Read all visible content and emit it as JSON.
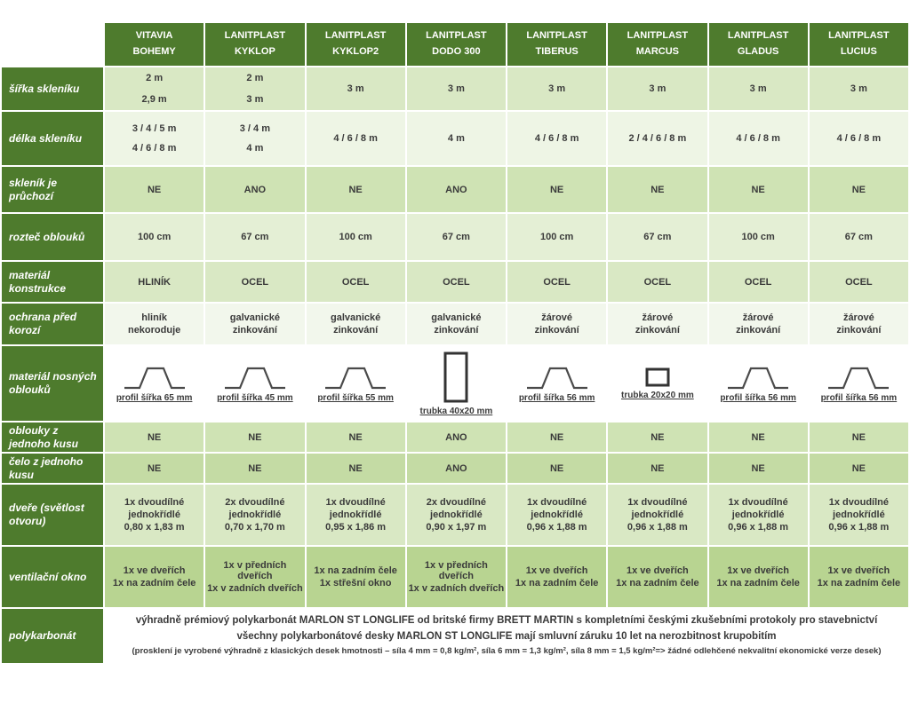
{
  "colors": {
    "header_green": "#4e7b2d",
    "cell_text": "#3a3a3a",
    "grid_white": "#ffffff",
    "profile_stroke": "#4a4a4a"
  },
  "table": {
    "columns": [
      {
        "brand": "VITAVIA",
        "model": "BOHEMY"
      },
      {
        "brand": "LANITPLAST",
        "model": "KYKLOP"
      },
      {
        "brand": "LANITPLAST",
        "model": "KYKLOP2"
      },
      {
        "brand": "LANITPLAST",
        "model": "DODO 300"
      },
      {
        "brand": "LANITPLAST",
        "model": "TIBERUS"
      },
      {
        "brand": "LANITPLAST",
        "model": "MARCUS"
      },
      {
        "brand": "LANITPLAST",
        "model": "GLADUS"
      },
      {
        "brand": "LANITPLAST",
        "model": "LUCIUS"
      }
    ],
    "rows": [
      {
        "label": "šířka skleníku",
        "bg": "#d9e8c4",
        "cells": [
          [
            "2 m",
            "2,9 m"
          ],
          [
            "2 m",
            "3 m"
          ],
          [
            "3 m"
          ],
          [
            "3 m"
          ],
          [
            "3 m"
          ],
          [
            "3 m"
          ],
          [
            "3 m"
          ],
          [
            "3 m"
          ]
        ]
      },
      {
        "label": "délka skleníku",
        "bg": "#eef5e5",
        "cells": [
          [
            "3 / 4 / 5 m",
            "4 / 6 / 8 m"
          ],
          [
            "3 / 4 m",
            "4 m"
          ],
          [
            "4 / 6 / 8 m"
          ],
          [
            "4 m"
          ],
          [
            "4 / 6 / 8 m"
          ],
          [
            "2 / 4 / 6 / 8 m"
          ],
          [
            "4 / 6 / 8 m"
          ],
          [
            "4 / 6 / 8 m"
          ]
        ]
      },
      {
        "label": "skleník je průchozí",
        "bg": "#cfe3b4",
        "cells": [
          [
            "NE"
          ],
          [
            "ANO"
          ],
          [
            "NE"
          ],
          [
            "ANO"
          ],
          [
            "NE"
          ],
          [
            "NE"
          ],
          [
            "NE"
          ],
          [
            "NE"
          ]
        ]
      },
      {
        "label": "rozteč oblouků",
        "bg": "#e4efd5",
        "cells": [
          [
            "100 cm"
          ],
          [
            "67 cm"
          ],
          [
            "100 cm"
          ],
          [
            "67 cm"
          ],
          [
            "100 cm"
          ],
          [
            "67 cm"
          ],
          [
            "100 cm"
          ],
          [
            "67 cm"
          ]
        ]
      },
      {
        "label": "materiál konstrukce",
        "bg": "#d9e8c4",
        "cells": [
          [
            "HLINÍK"
          ],
          [
            "OCEL"
          ],
          [
            "OCEL"
          ],
          [
            "OCEL"
          ],
          [
            "OCEL"
          ],
          [
            "OCEL"
          ],
          [
            "OCEL"
          ],
          [
            "OCEL"
          ]
        ]
      },
      {
        "label": "ochrana před korozí",
        "bg": "#f2f7ec",
        "cells": [
          [
            "hliník",
            "nekoroduje"
          ],
          [
            "galvanické",
            "zinkování"
          ],
          [
            "galvanické",
            "zinkování"
          ],
          [
            "galvanické",
            "zinkování"
          ],
          [
            "žárové",
            "zinkování"
          ],
          [
            "žárové",
            "zinkování"
          ],
          [
            "žárové",
            "zinkování"
          ],
          [
            "žárové",
            "zinkování"
          ]
        ]
      },
      {
        "label": "materiál nosných oblouků",
        "bg": "#ffffff",
        "type": "profile",
        "cells": [
          {
            "shape": "hat-profile",
            "caption": "profil šířka 65 mm"
          },
          {
            "shape": "hat-profile",
            "caption": "profil šířka 45 mm"
          },
          {
            "shape": "hat-profile",
            "caption": "profil šířka 55 mm"
          },
          {
            "shape": "vertical-tube",
            "caption": "trubka 40x20 mm"
          },
          {
            "shape": "hat-profile",
            "caption": "profil šířka 56 mm"
          },
          {
            "shape": "square-tube",
            "caption": "trubka 20x20 mm"
          },
          {
            "shape": "hat-profile",
            "caption": "profil šířka 56 mm"
          },
          {
            "shape": "hat-profile",
            "caption": "profil šířka 56 mm"
          }
        ]
      },
      {
        "label": "oblouky z jednoho kusu",
        "bg": "#cfe3b4",
        "cells": [
          [
            "NE"
          ],
          [
            "NE"
          ],
          [
            "NE"
          ],
          [
            "ANO"
          ],
          [
            "NE"
          ],
          [
            "NE"
          ],
          [
            "NE"
          ],
          [
            "NE"
          ]
        ]
      },
      {
        "label": "čelo z jednoho kusu",
        "bg": "#c4dba4",
        "cells": [
          [
            "NE"
          ],
          [
            "NE"
          ],
          [
            "NE"
          ],
          [
            "ANO"
          ],
          [
            "NE"
          ],
          [
            "NE"
          ],
          [
            "NE"
          ],
          [
            "NE"
          ]
        ]
      },
      {
        "label": "dveře (světlost otvoru)",
        "bg": "#d9e8c4",
        "cells": [
          [
            "1x dvoudílné",
            "jednokřídlé",
            "0,80 x 1,83 m"
          ],
          [
            "2x dvoudílné",
            "jednokřídlé",
            "0,70 x 1,70 m"
          ],
          [
            "1x dvoudílné",
            "jednokřídlé",
            "0,95 x 1,86 m"
          ],
          [
            "2x dvoudílné",
            "jednokřídlé",
            "0,90 x 1,97 m"
          ],
          [
            "1x dvoudílné",
            "jednokřídlé",
            "0,96 x 1,88 m"
          ],
          [
            "1x dvoudílné",
            "jednokřídlé",
            "0,96 x 1,88 m"
          ],
          [
            "1x dvoudílné",
            "jednokřídlé",
            "0,96 x 1,88 m"
          ],
          [
            "1x dvoudílné",
            "jednokřídlé",
            "0,96 x 1,88 m"
          ]
        ]
      },
      {
        "label": "ventilační okno",
        "bg": "#b8d491",
        "cells": [
          [
            "1x ve dveřích",
            "1x na zadním čele"
          ],
          [
            "1x v předních dveřích",
            "1x v zadních dveřích"
          ],
          [
            "1x na zadním čele",
            "1x střešní okno"
          ],
          [
            "1x v předních dveřích",
            "1x v zadních dveřích"
          ],
          [
            "1x ve dveřích",
            "1x na zadním čele"
          ],
          [
            "1x ve dveřích",
            "1x na zadním čele"
          ],
          [
            "1x ve dveřích",
            "1x na zadním čele"
          ],
          [
            "1x ve dveřích",
            "1x na zadním čele"
          ]
        ]
      }
    ],
    "footer": {
      "label": "polykarbonát",
      "lines": [
        "výhradně prémiový polykarbonát MARLON ST LONGLIFE od britské firmy BRETT MARTIN s kompletními českými zkušebními protokoly pro stavebnictví",
        "všechny polykarbonátové desky MARLON ST LONGLIFE mají smluvní záruku 10 let na nerozbitnost krupobitím",
        "(prosklení je vyrobené výhradně z klasických desek hmotnosti – síla 4 mm = 0,8 kg/m², síla 6 mm = 1,3 kg/m², síla 8 mm = 1,5 kg/m²=> žádné odlehčené nekvalitní ekonomické verze desek)"
      ]
    }
  }
}
